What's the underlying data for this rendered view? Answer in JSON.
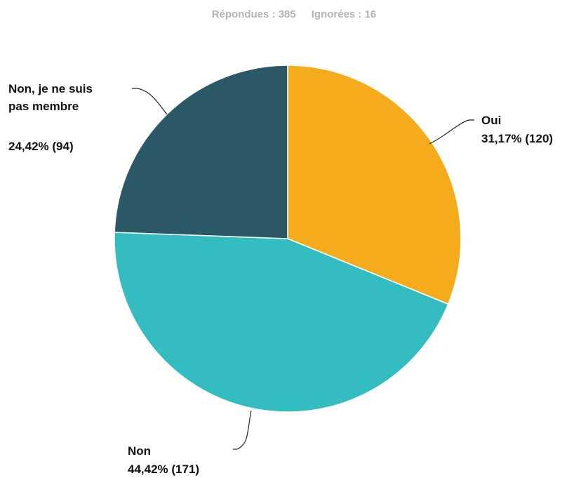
{
  "summary": {
    "answered": "Répondues : 385",
    "skipped": "Ignorées : 16"
  },
  "chart_data": {
    "type": "pie",
    "categories": [
      "Oui",
      "Non",
      "Non, je ne suis pas membre"
    ],
    "label_lines": [
      [
        "Oui"
      ],
      [
        "Non"
      ],
      [
        "Non, je ne suis",
        "pas membre"
      ]
    ],
    "percent_labels": [
      "31,17% (120)",
      "44,42% (171)",
      "24,42% (94)"
    ],
    "percentages": [
      31.17,
      44.42,
      24.42
    ],
    "counts": [
      120,
      171,
      94
    ],
    "colors": [
      "#f5ac1c",
      "#33bdc0",
      "#2b5867"
    ]
  }
}
